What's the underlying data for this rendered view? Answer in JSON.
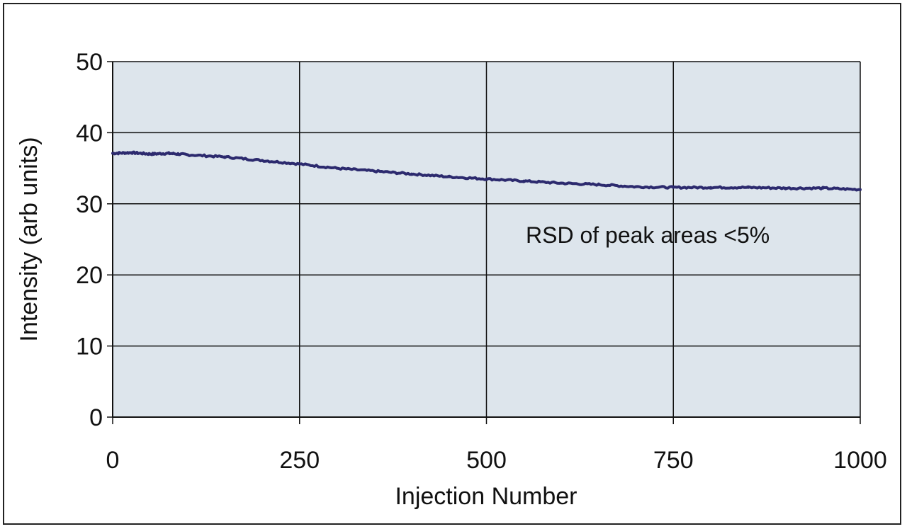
{
  "chart_data": {
    "type": "line",
    "title": "",
    "xlabel": "Injection Number",
    "ylabel": "Intensity (arb units)",
    "xlim": [
      0,
      1000
    ],
    "ylim": [
      0,
      50
    ],
    "x_ticks": [
      "0",
      "250",
      "500",
      "750",
      "1000"
    ],
    "y_ticks": [
      "0",
      "10",
      "20",
      "30",
      "40",
      "50"
    ],
    "grid": true,
    "annotation": "RSD of peak areas <5%",
    "plot_background": "#dde5ec",
    "series_color": "#2c2a6e",
    "series": [
      {
        "x": [
          0,
          25,
          50,
          75,
          100,
          150,
          200,
          250,
          300,
          350,
          400,
          450,
          500,
          550,
          600,
          650,
          700,
          750,
          800,
          850,
          900,
          950,
          1000
        ],
        "values": [
          37.1,
          37.2,
          37.0,
          37.1,
          36.9,
          36.6,
          36.1,
          35.6,
          35.0,
          34.6,
          34.2,
          33.8,
          33.5,
          33.2,
          32.9,
          32.7,
          32.4,
          32.3,
          32.3,
          32.3,
          32.2,
          32.2,
          32.0
        ]
      }
    ]
  }
}
